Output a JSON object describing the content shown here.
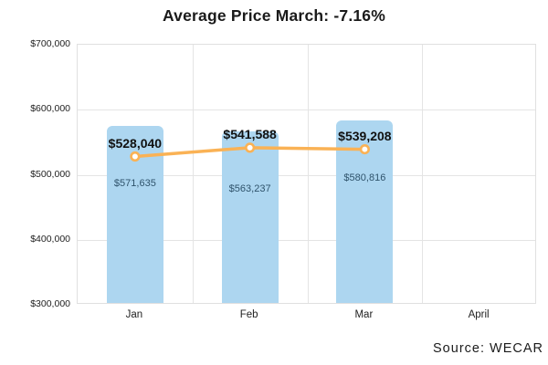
{
  "title": "Average Price March: -7.16%",
  "source_label": "Source: WECAR",
  "colors": {
    "bar_fill": "#ADD6F0",
    "line_stroke": "#FAB255",
    "marker_fill": "#FFFFFF",
    "grid": "#E4E4E4",
    "bar_label_text": "#2F536B",
    "line_label_text": "#111111",
    "axis_text": "#222222"
  },
  "chart_data": {
    "type": "bar+line combo",
    "title": "Average Price March: -7.16%",
    "categories": [
      "Jan",
      "Feb",
      "Mar",
      "April"
    ],
    "series": [
      {
        "name": "bar-series",
        "type": "bar",
        "values": [
          571635,
          563237,
          580816,
          null
        ],
        "labels": [
          "$571,635",
          "$563,237",
          "$580,816",
          null
        ]
      },
      {
        "name": "line-series",
        "type": "line",
        "values": [
          528040,
          541588,
          539208,
          null
        ],
        "labels": [
          "$528,040",
          "$541,588",
          "$539,208",
          null
        ]
      }
    ],
    "ylim": [
      300000,
      700000
    ],
    "yticks": [
      "$700,000",
      "$600,000",
      "$500,000",
      "$400,000",
      "$300,000"
    ],
    "grid": true,
    "legend_position": "none",
    "source": "Source: WECAR"
  }
}
